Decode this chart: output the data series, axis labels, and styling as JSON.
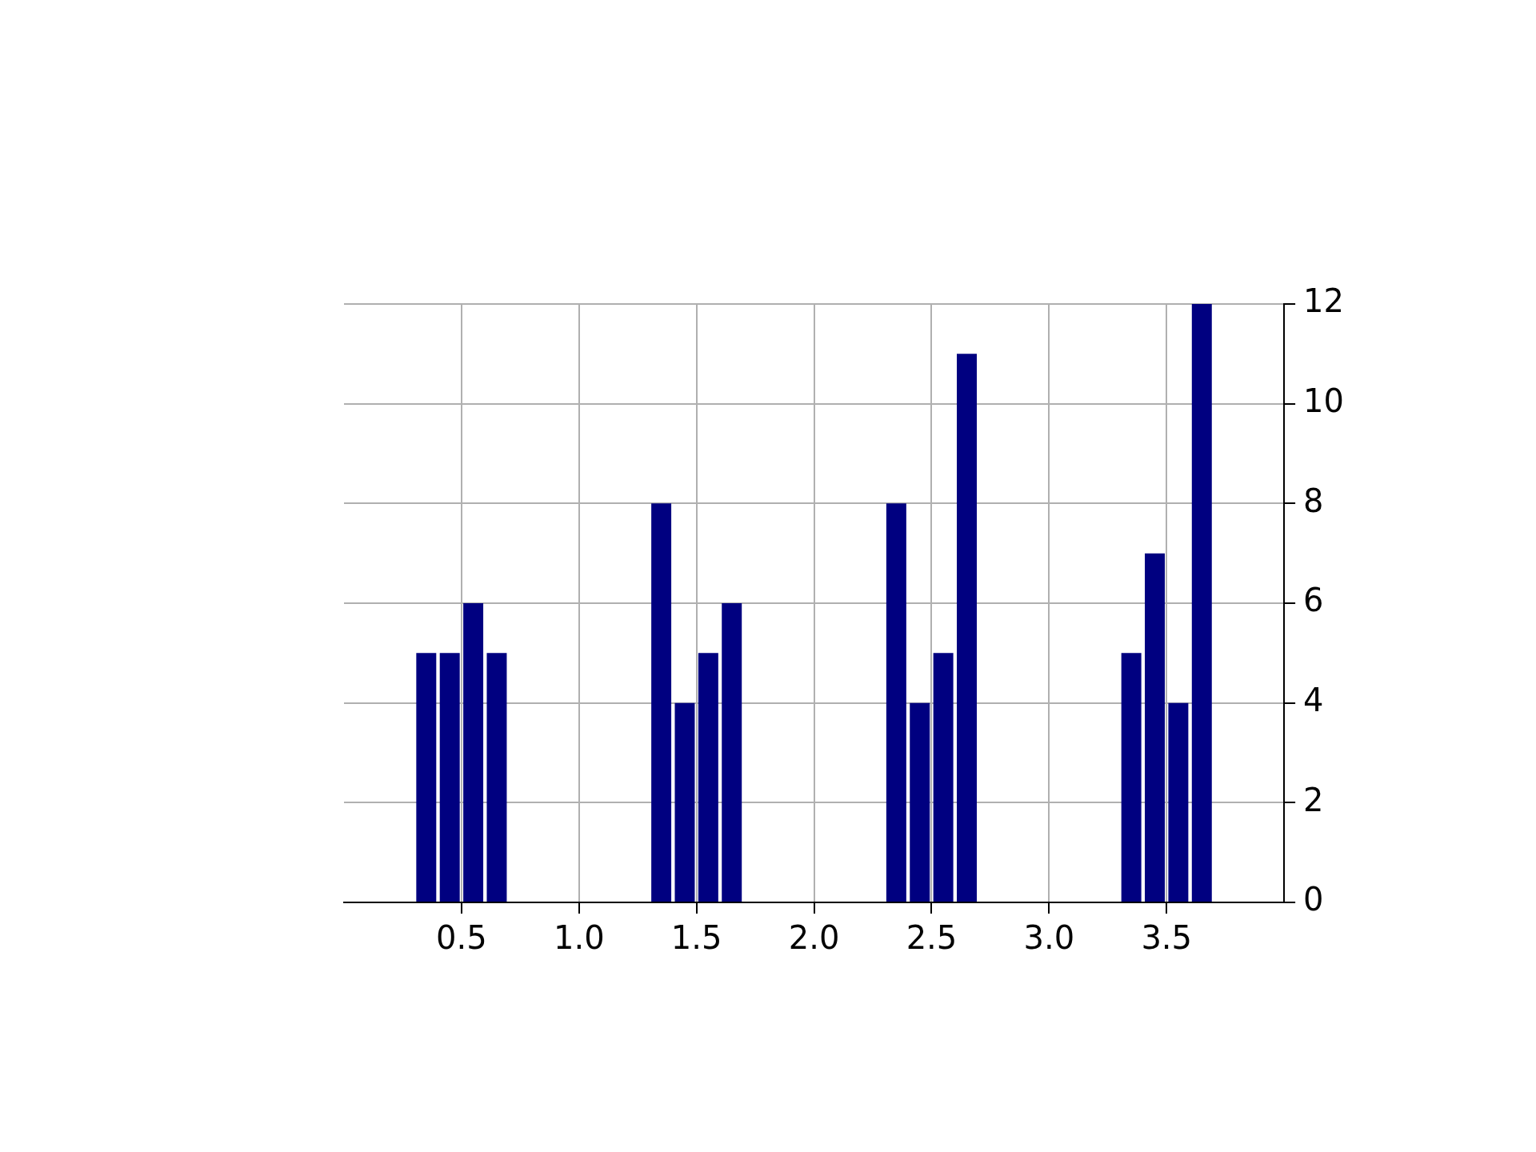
{
  "chart_data": {
    "type": "bar",
    "x": [
      0.5,
      1.5,
      2.5,
      3.5
    ],
    "series": [
      {
        "color": "#000080",
        "values": [
          5,
          8,
          8,
          5
        ]
      },
      {
        "color": "#000080",
        "values": [
          5,
          4,
          4,
          7
        ]
      },
      {
        "color": "#000080",
        "values": [
          6,
          5,
          5,
          4
        ]
      },
      {
        "color": "#000080",
        "values": [
          5,
          6,
          11,
          12
        ]
      }
    ],
    "xlim": [
      0,
      4
    ],
    "xticks": [
      0.5,
      {
        "value": 1,
        "label": "1.0"
      },
      1.5,
      {
        "value": 2,
        "label": "2.0"
      },
      2.5,
      {
        "value": 3,
        "label": "3.0"
      },
      3.5
    ],
    "ylim": [
      0,
      12
    ],
    "yticks": [
      0,
      2,
      4,
      6,
      8,
      10,
      12
    ],
    "grid": true
  }
}
